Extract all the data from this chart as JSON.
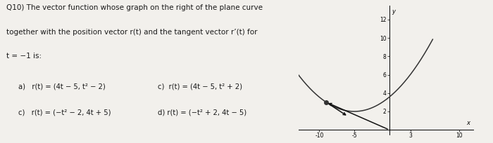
{
  "text_question_line1": "Q10) The vector function whose graph on the right of the plane curve",
  "text_question_line2": "together with the position vector r(t) and the tangent vector r’(t) for",
  "text_question_line3": "t = −1 is:",
  "opt_a": "a)   r(t) = (4t − 5, t² − 2)",
  "opt_c_left": "c)   r(t) = (−t² − 2, 4t + 5)",
  "opt_c_right": "c)  r(t) = (4t − 5, t² + 2)",
  "opt_d_right": "d) r(t) = (−t² + 2, 4t − 5)",
  "xlim": [
    -13,
    12
  ],
  "ylim": [
    -0.5,
    13.5
  ],
  "xticks": [
    -10,
    -5,
    3,
    10
  ],
  "yticks": [
    2,
    4,
    6,
    8,
    10,
    12
  ],
  "curve_color": "#333333",
  "tangent_color": "#111111",
  "position_color": "#111111",
  "bg_color": "#f2f0ec",
  "text_color": "#1a1a1a",
  "t_point": -1,
  "t_range": [
    -3.1,
    2.8
  ],
  "arrow_scale": 1.0,
  "dot_size": 4
}
